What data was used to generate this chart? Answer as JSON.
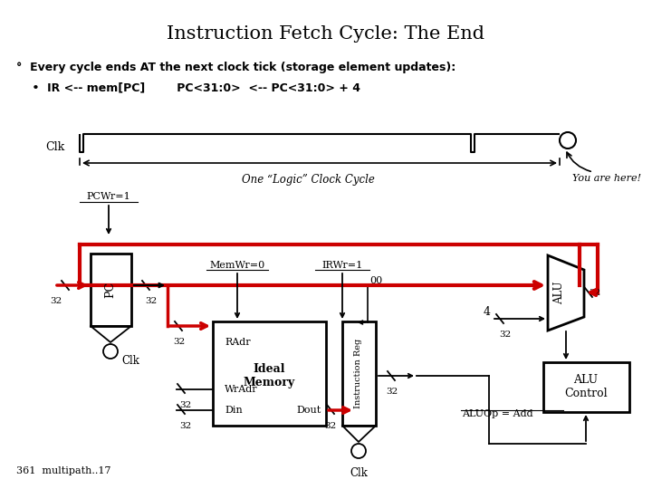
{
  "title": "Instruction Fetch Cycle: The End",
  "bullet1": "°  Every cycle ends AT the next clock tick (storage element updates):",
  "bullet2": "    •  IR <-- mem[PC]        PC<31:0>  <-- PC<31:0> + 4",
  "footer": "361  multipath..17",
  "bg_color": "#ffffff",
  "red_color": "#cc0000",
  "clk_label": "Clk",
  "clock_cycle_label": "One “Logic” Clock Cycle",
  "you_are_here": "You are here!",
  "pcwr_label": "PCWr=1",
  "mem_wr_label": "MemWr=0",
  "ir_wr_label": "IRWr=1",
  "ideal_mem_label": "Ideal\nMemory",
  "radr_label": "RAdr",
  "wradr_label": "WrAdr",
  "din_label": "Din",
  "dout_label": "Dout",
  "instruction_reg_label": "Instruction Reg",
  "alu_label": "ALU",
  "alu_control_label": "ALU\nControl",
  "alu_op_label": "ALUOp = Add",
  "pc_label": "PC"
}
